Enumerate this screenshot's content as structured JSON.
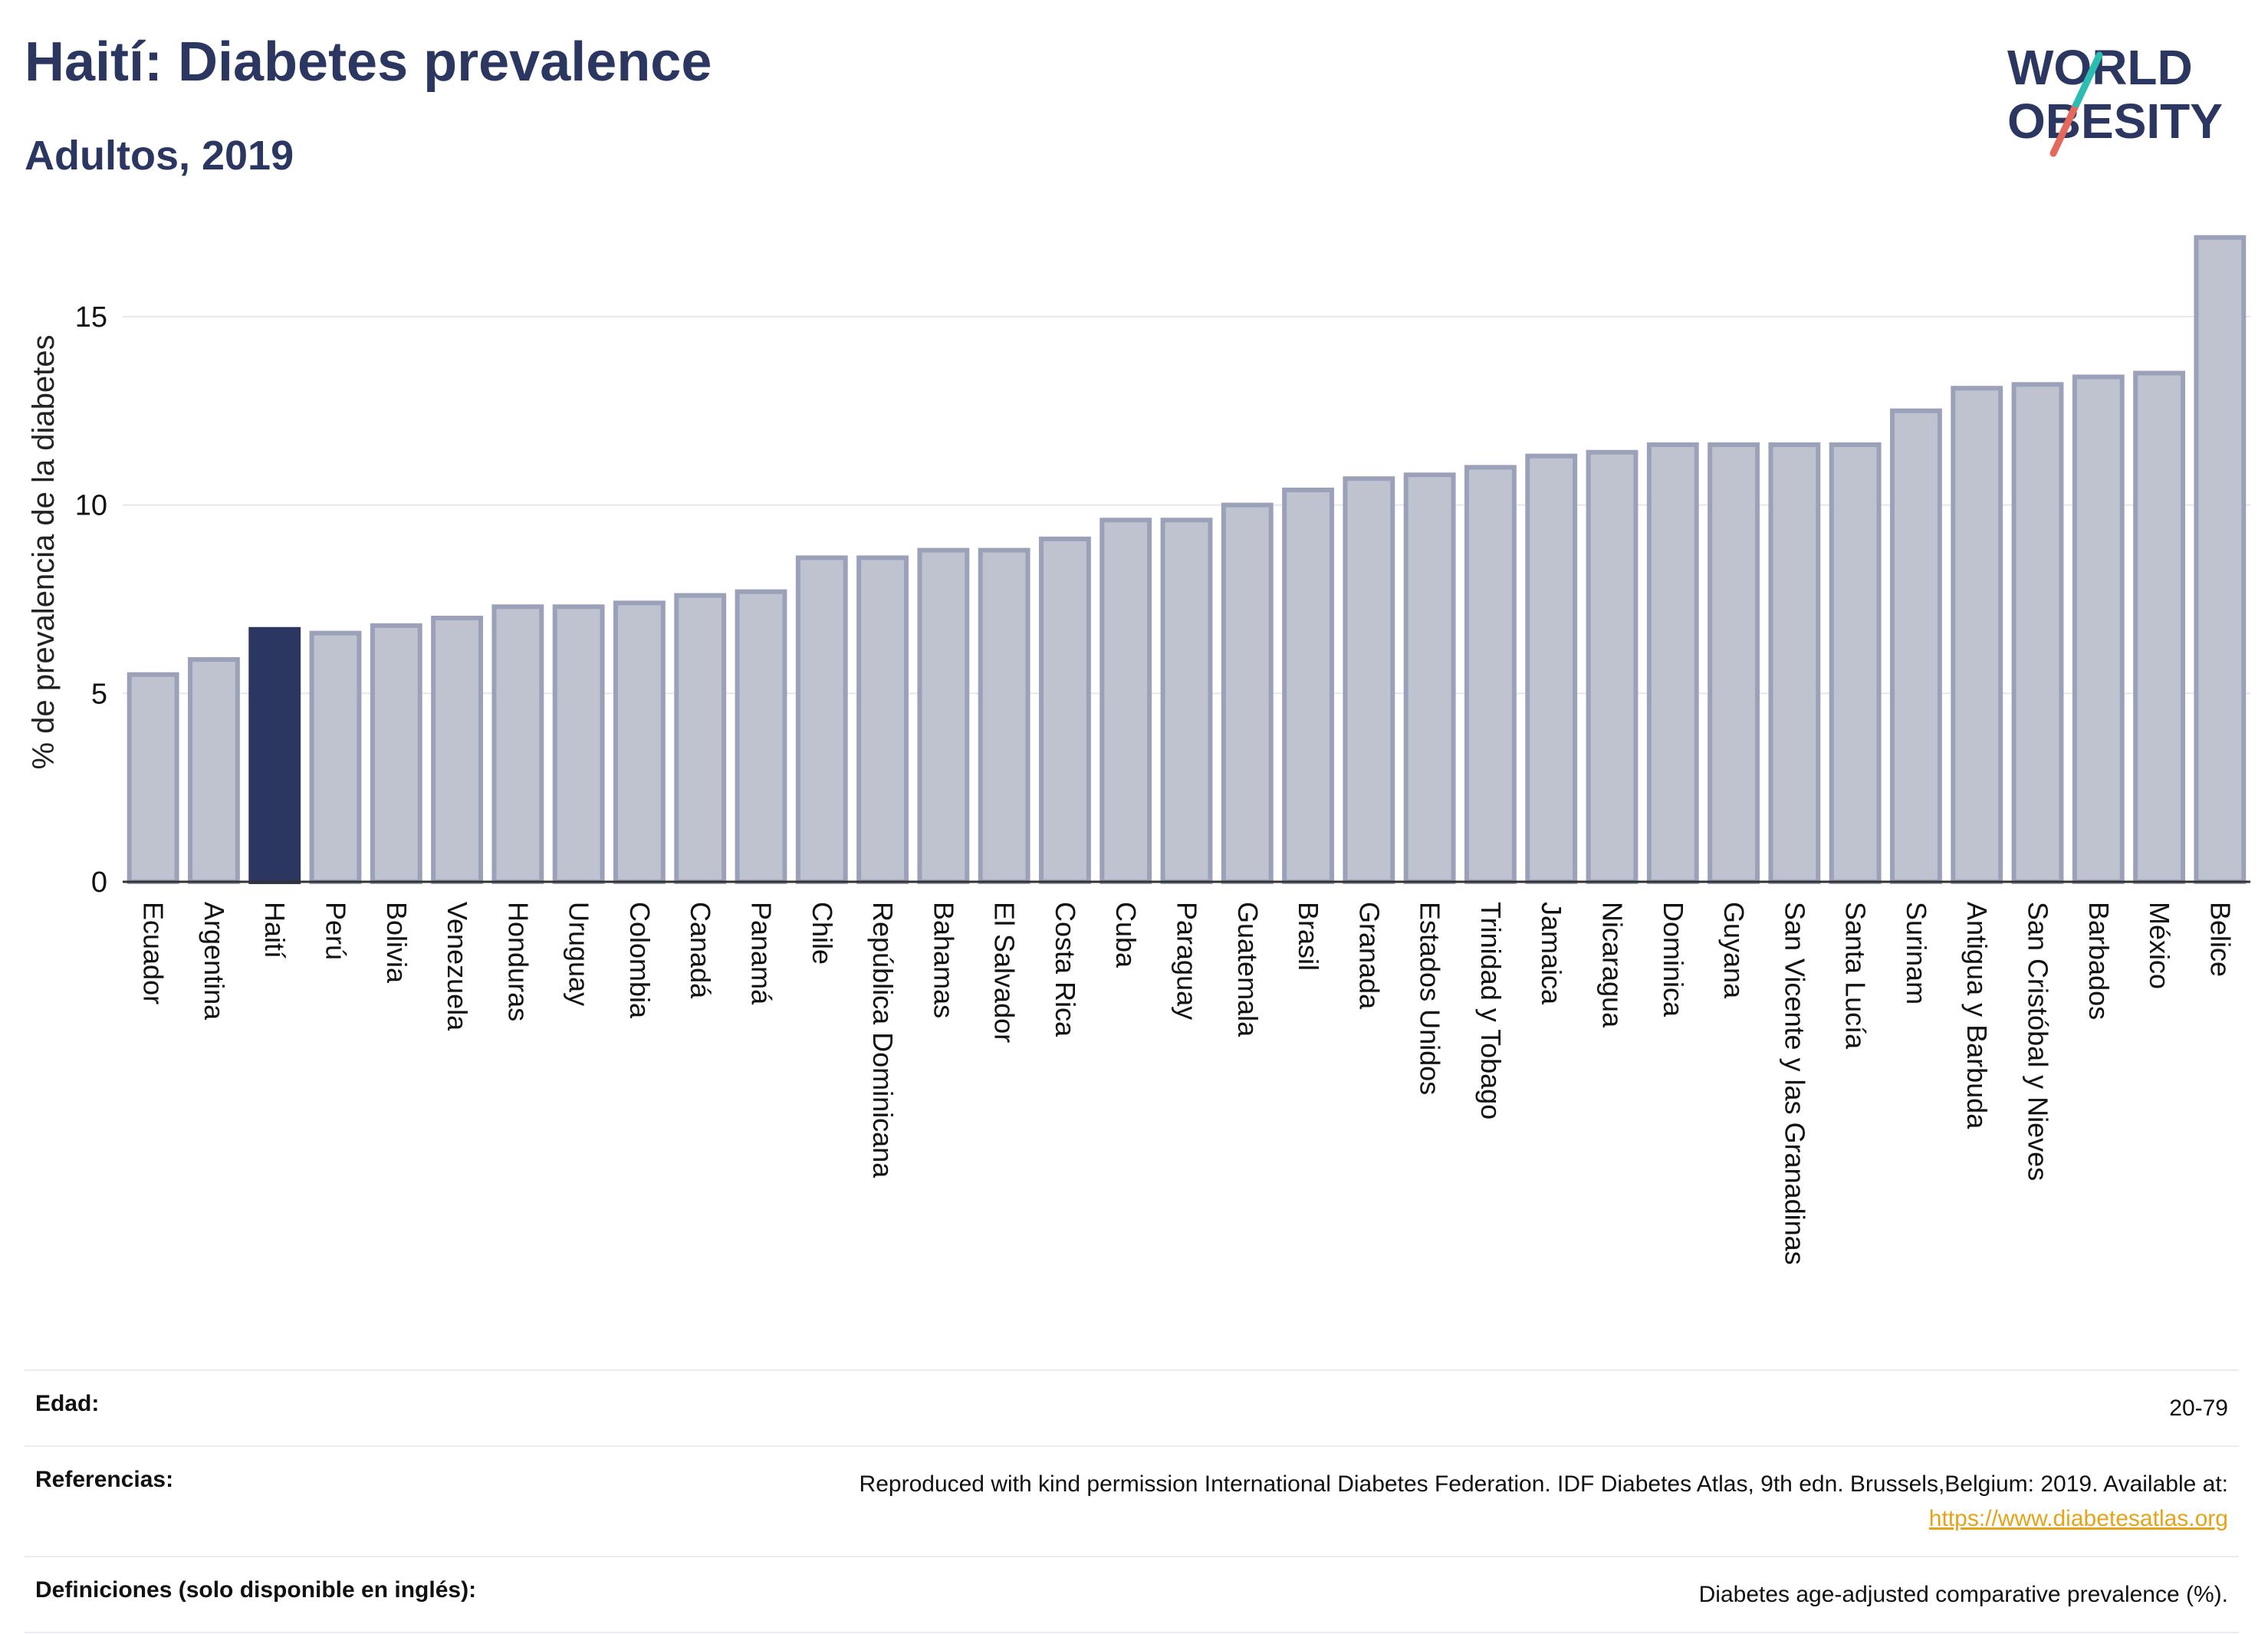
{
  "header": {
    "title": "Haití: Diabetes prevalence",
    "subtitle": "Adultos, 2019",
    "logo_line1": "WORLD",
    "logo_line2": "OBESITY"
  },
  "chart_data": {
    "type": "bar",
    "ylabel": "% de prevalencia de la diabetes",
    "xlabel": "",
    "ylim": [
      0,
      17.5
    ],
    "yticks": [
      0,
      5,
      10,
      15
    ],
    "highlight": "Haití",
    "grid": true,
    "categories": [
      "Ecuador",
      "Argentina",
      "Haití",
      "Perú",
      "Bolivia",
      "Venezuela",
      "Honduras",
      "Uruguay",
      "Colombia",
      "Canadá",
      "Panamá",
      "Chile",
      "República Dominicana",
      "Bahamas",
      "El Salvador",
      "Costa Rica",
      "Cuba",
      "Paraguay",
      "Guatemala",
      "Brasil",
      "Granada",
      "Estados Unidos",
      "Trinidad y Tobago",
      "Jamaica",
      "Nicaragua",
      "Dominica",
      "Guyana",
      "San Vicente y las Granadinas",
      "Santa Lucía",
      "Surinam",
      "Antigua y Barbuda",
      "San Cristóbal y Nieves",
      "Barbados",
      "México",
      "Belice"
    ],
    "values": [
      5.5,
      5.9,
      6.7,
      6.6,
      6.8,
      7.0,
      7.3,
      7.3,
      7.4,
      7.6,
      7.7,
      8.6,
      8.6,
      8.8,
      8.8,
      9.1,
      9.6,
      9.6,
      10.0,
      10.4,
      10.7,
      10.8,
      11.0,
      11.3,
      11.4,
      11.6,
      11.6,
      11.6,
      11.6,
      12.5,
      13.1,
      13.2,
      13.4,
      13.5,
      17.1
    ],
    "colors": {
      "bar": "#bfc3d0",
      "bar_edge": "#9aa1b9",
      "highlight": "#2b3661"
    }
  },
  "meta": {
    "age_label": "Edad:",
    "age_value": "20-79",
    "refs_label": "Referencias:",
    "refs_value": "Reproduced with kind permission International Diabetes Federation. IDF Diabetes Atlas, 9th edn. Brussels,Belgium: 2019. Available at:",
    "refs_link": "https://www.diabetesatlas.org",
    "defs_label": "Definiciones (solo disponible en inglés):",
    "defs_value": "Diabetes age-adjusted comparative prevalence (%)."
  }
}
